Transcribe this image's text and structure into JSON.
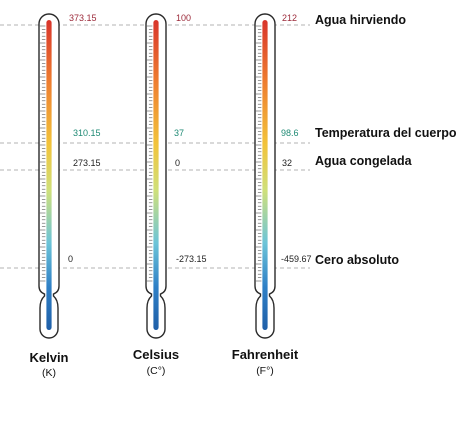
{
  "colors": {
    "boiling": "#9c2a3a",
    "body": "#1f8a74",
    "normal": "#222222",
    "tube_outline": "#2a2a2a",
    "dashed_line": "#9a9a9a",
    "gradient": [
      "#d8342b",
      "#ee7d2f",
      "#f2c33a",
      "#cfe07a",
      "#6cc4d8",
      "#2f80c6",
      "#1f5fa8"
    ]
  },
  "references": {
    "boiling": "Agua hirviendo",
    "body": "Temperatura del cuerpo",
    "freezing": "Agua congelada",
    "absolute_zero": "Cero absoluto"
  },
  "thermometers": [
    {
      "id": "kelvin",
      "name": "Kelvin",
      "unit": "(K)",
      "values": {
        "boiling": "373.15",
        "body": "310.15",
        "freezing": "273.15",
        "absolute_zero": "0"
      }
    },
    {
      "id": "celsius",
      "name": "Celsius",
      "unit": "(C°)",
      "values": {
        "boiling": "100",
        "body": "37",
        "freezing": "0",
        "absolute_zero": "-273.15"
      }
    },
    {
      "id": "fahrenheit",
      "name": "Fahrenheit",
      "unit": "(F°)",
      "values": {
        "boiling": "212",
        "body": "98.6",
        "freezing": "32",
        "absolute_zero": "-459.67"
      }
    }
  ]
}
